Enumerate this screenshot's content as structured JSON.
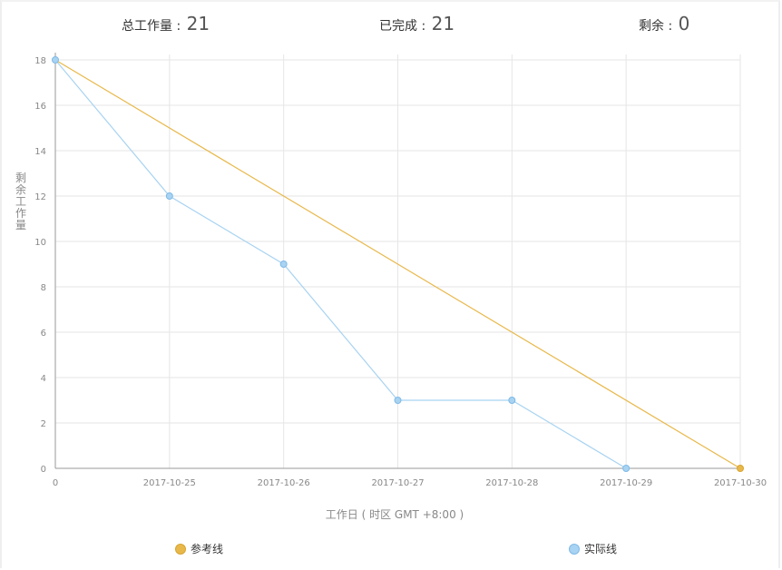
{
  "summary": {
    "total_label": "总工作量 : ",
    "total_value": "21",
    "done_label": "已完成 : ",
    "done_value": "21",
    "remaining_label": "剩余 : ",
    "remaining_value": "0"
  },
  "chart_data": {
    "type": "line",
    "ylabel": "剩余工作量",
    "xlabel": "工作日 ( 时区 GMT +8:00 )",
    "categories": [
      "0",
      "2017-10-25",
      "2017-10-26",
      "2017-10-27",
      "2017-10-28",
      "2017-10-29",
      "2017-10-30"
    ],
    "ylim": [
      0,
      18
    ],
    "yticks": [
      0,
      2,
      4,
      6,
      8,
      10,
      12,
      14,
      16,
      18
    ],
    "grid": true,
    "legend_position": "bottom",
    "series": [
      {
        "name": "参考线",
        "color": "#e8b84a",
        "points": [
          [
            0,
            18
          ],
          [
            6,
            0
          ]
        ]
      },
      {
        "name": "实际线",
        "color": "#a8d3f2",
        "points": [
          [
            0,
            18
          ],
          [
            1,
            12
          ],
          [
            2,
            9
          ],
          [
            3,
            3
          ],
          [
            4,
            3
          ],
          [
            5,
            0
          ]
        ]
      }
    ]
  },
  "colors": {
    "ref": "#e8b84a",
    "actual": "#a8d3f2",
    "grid": "#e6e6e6",
    "axis": "#999999"
  }
}
